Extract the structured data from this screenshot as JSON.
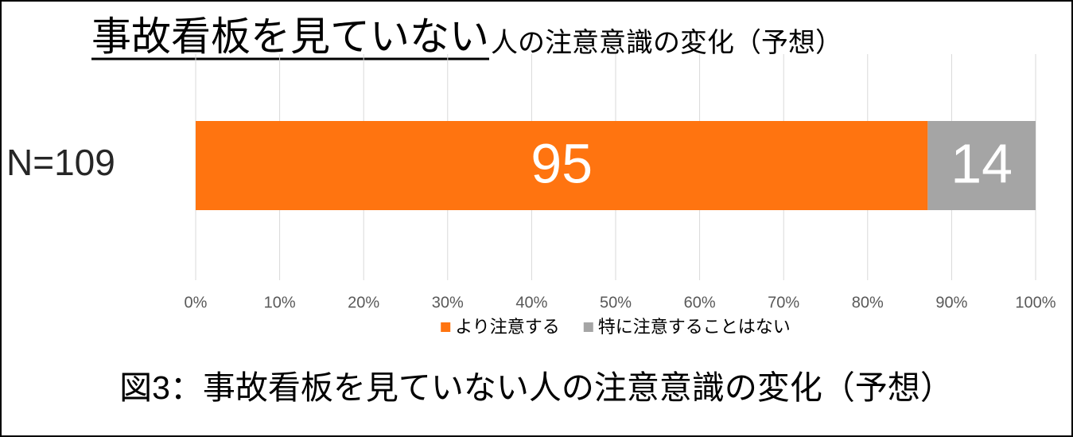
{
  "chart_data": {
    "type": "bar",
    "orientation": "horizontal",
    "stacking": "percent",
    "title": "事故看板を見ていない",
    "subtitle": "人の注意意識の変化（予想）",
    "caption": "図3：事故看板を見ていない人の注意意識の変化（予想）",
    "categories": [
      "N=109"
    ],
    "series": [
      {
        "name": "より注意する",
        "color": "#ff7410",
        "values": [
          95
        ]
      },
      {
        "name": "特に注意することはない",
        "color": "#a5a5a5",
        "values": [
          14
        ]
      }
    ],
    "xlim": [
      0,
      100
    ],
    "xticks": [
      {
        "value": 0,
        "label": "0%"
      },
      {
        "value": 10,
        "label": "10%"
      },
      {
        "value": 20,
        "label": "20%"
      },
      {
        "value": 30,
        "label": "30%"
      },
      {
        "value": 40,
        "label": "40%"
      },
      {
        "value": 50,
        "label": "50%"
      },
      {
        "value": 60,
        "label": "60%"
      },
      {
        "value": 70,
        "label": "70%"
      },
      {
        "value": 80,
        "label": "80%"
      },
      {
        "value": 90,
        "label": "90%"
      },
      {
        "value": 100,
        "label": "100%"
      }
    ],
    "grid": true,
    "legend": "bottom"
  }
}
